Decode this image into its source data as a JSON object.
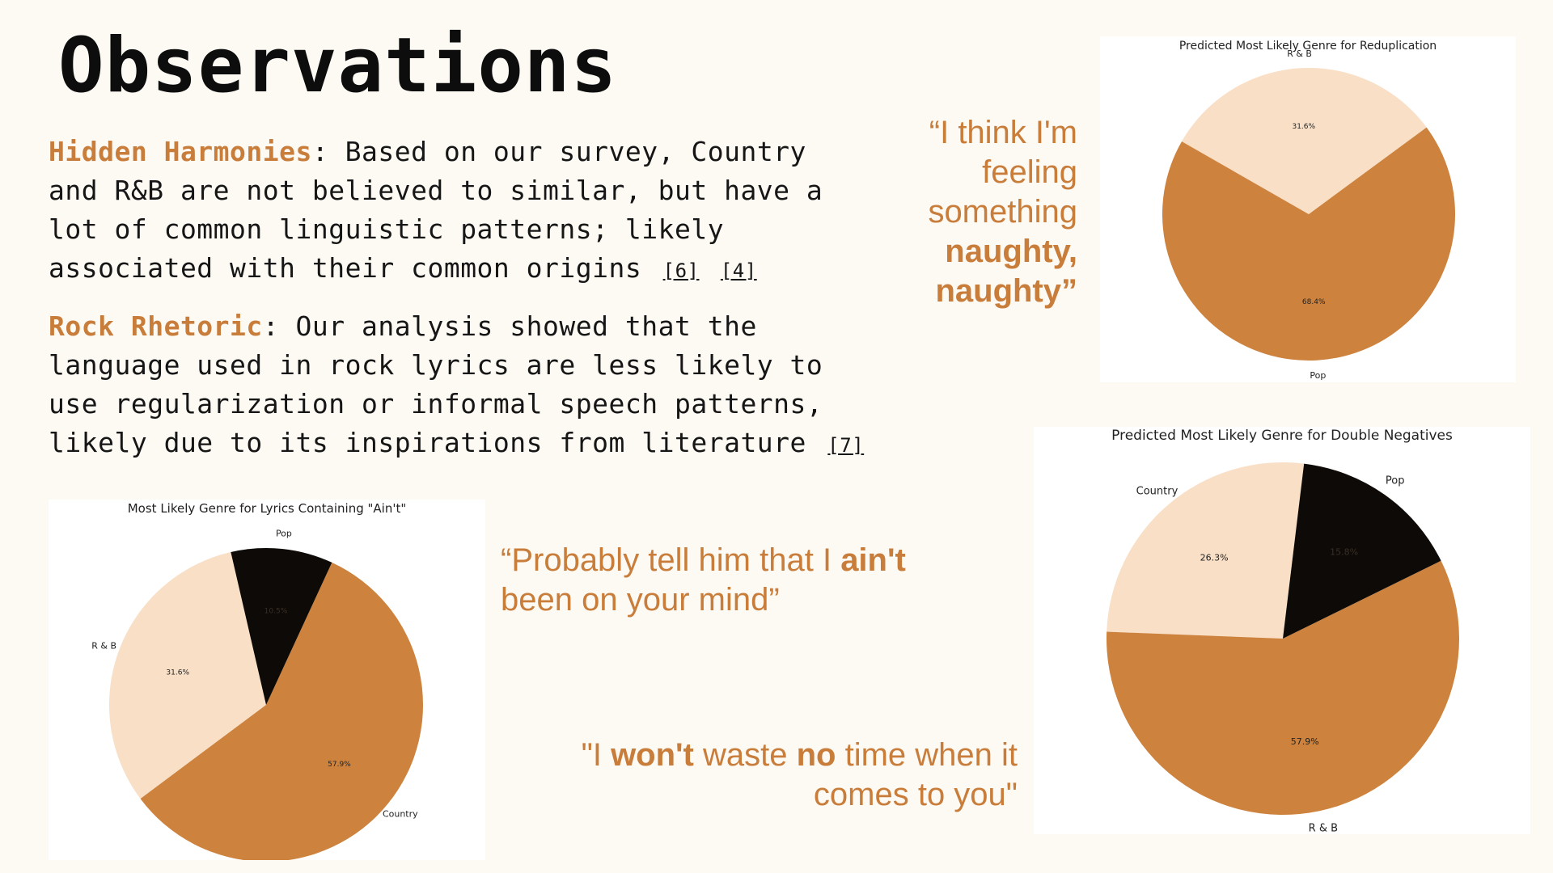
{
  "title": "Observations",
  "paragraphs": [
    {
      "heading": "Hidden Harmonies",
      "text": ": Based on our survey, Country and R&B are not believed to similar, but have a lot of common linguistic patterns; likely associated with their common origins",
      "refs": [
        "[6]",
        "[4]"
      ]
    },
    {
      "heading": "Rock Rhetoric",
      "text": ": Our analysis showed that the language used in rock lyrics are less likely to use regularization or informal speech patterns, likely due to its inspirations from literature",
      "refs": [
        "[7]"
      ]
    }
  ],
  "quotes": {
    "q1": {
      "l1": "“I think I'm",
      "l2": "feeling",
      "l3": "something",
      "l4": "naughty,",
      "l5": "naughty”"
    },
    "q2": {
      "pre": "“Probably tell him that I ",
      "bold": "ain't",
      "line2": "been on your mind”"
    },
    "q3": {
      "pre": "\"I ",
      "b1": "won't",
      "mid1": " waste ",
      "b2": "no",
      "mid2": " time when it",
      "line2": "comes to you\""
    }
  },
  "colors": {
    "accent": "#c97d3b",
    "pie_brown": "#cd823d",
    "pie_peach": "#f8dfc6",
    "pie_black": "#0e0a07"
  },
  "chart_data": [
    {
      "type": "pie",
      "title": "Predicted Most Likely Genre for Reduplication",
      "slices": [
        {
          "label": "R & B",
          "value": 31.6,
          "pct": "31.6%",
          "color": "#f8dfc6"
        },
        {
          "label": "Pop",
          "value": 68.4,
          "pct": "68.4%",
          "color": "#cd823d"
        }
      ]
    },
    {
      "type": "pie",
      "title": "Predicted Most Likely Genre for Double Negatives",
      "slices": [
        {
          "label": "Country",
          "value": 26.3,
          "pct": "26.3%",
          "color": "#f8dfc6"
        },
        {
          "label": "R & B",
          "value": 57.9,
          "pct": "57.9%",
          "color": "#cd823d"
        },
        {
          "label": "Pop",
          "value": 15.8,
          "pct": "15.8%",
          "color": "#0e0a07"
        }
      ]
    },
    {
      "type": "pie",
      "title": "Most Likely Genre for Lyrics Containing \"Ain't\"",
      "slices": [
        {
          "label": "R & B",
          "value": 31.6,
          "pct": "31.6%",
          "color": "#f8dfc6"
        },
        {
          "label": "Country",
          "value": 57.9,
          "pct": "57.9%",
          "color": "#cd823d"
        },
        {
          "label": "Pop",
          "value": 10.5,
          "pct": "10.5%",
          "color": "#0e0a07"
        }
      ]
    }
  ]
}
